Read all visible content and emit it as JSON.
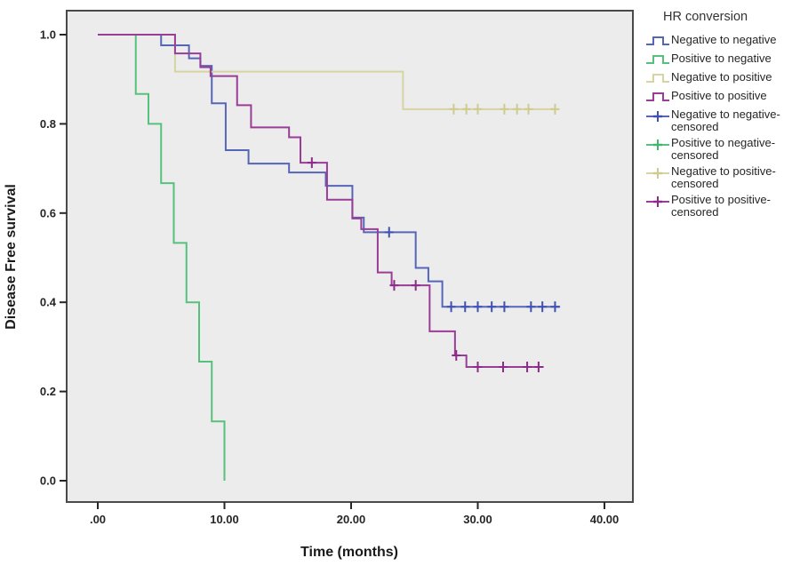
{
  "figure": {
    "y_axis": {
      "title": "Disease Free survival"
    },
    "x_axis": {
      "title": "Time (months)"
    },
    "legend": {
      "title": "HR conversion",
      "items": [
        {
          "label": "Negative to negative",
          "kind": "step",
          "color": "#5566b8"
        },
        {
          "label": "Positive to negative",
          "kind": "step",
          "color": "#56c17d"
        },
        {
          "label": "Negative to positive",
          "kind": "step",
          "color": "#d7d4a2"
        },
        {
          "label": "Positive to positive",
          "kind": "step",
          "color": "#993d96"
        },
        {
          "label": "Negative to negative-",
          "label2": "censored",
          "kind": "censor",
          "color": "#5566b8",
          "censor_color": "#3f51b0"
        },
        {
          "label": "Positive to negative-",
          "label2": "censored",
          "kind": "censor",
          "color": "#56c17d",
          "censor_color": "#43b56e"
        },
        {
          "label": "Negative to positive-",
          "label2": "censored",
          "kind": "censor",
          "color": "#d7d4a2",
          "censor_color": "#cfcb8e"
        },
        {
          "label": "Positive to positive-",
          "label2": "censored",
          "kind": "censor",
          "color": "#993d96",
          "censor_color": "#8b2d88"
        }
      ]
    }
  },
  "chart_data": {
    "type": "line",
    "subtype": "kaplan-meier-step-survival",
    "title": "",
    "xlabel": "Time (months)",
    "ylabel": "Disease Free survival",
    "legend_title": "HR conversion",
    "legend_position": "right",
    "grid": false,
    "plot_background": "#ececec",
    "xlim": [
      -2.5,
      42.3
    ],
    "ylim": [
      0,
      1.05
    ],
    "x_ticks": [
      0,
      10,
      20,
      30,
      40
    ],
    "x_tick_labels": [
      ".00",
      "10.00",
      "20.00",
      "30.00",
      "40.00"
    ],
    "y_ticks": [
      1.0,
      0.8,
      0.6,
      0.4,
      0.2,
      0.0
    ],
    "y_tick_labels": [
      "1.0",
      "0.8",
      "0.6",
      "0.4",
      "0.2",
      "0.0"
    ],
    "series": [
      {
        "name": "Negative to negative",
        "color": "#5566b8",
        "censor_color": "#3f51b0",
        "start": [
          0,
          1.0
        ],
        "steps": [
          [
            5.0,
            0.976
          ],
          [
            7.2,
            0.947
          ],
          [
            8.1,
            0.93
          ],
          [
            9.0,
            0.846
          ],
          [
            10.1,
            0.741
          ],
          [
            11.9,
            0.711
          ],
          [
            15.1,
            0.691
          ],
          [
            18.0,
            0.661
          ],
          [
            20.1,
            0.59
          ],
          [
            21.0,
            0.557
          ],
          [
            25.1,
            0.477
          ],
          [
            26.1,
            0.447
          ],
          [
            27.2,
            0.39
          ]
        ],
        "end": 36.5,
        "censored": [
          [
            23.0,
            0.557
          ],
          [
            27.9,
            0.39
          ],
          [
            29.0,
            0.39
          ],
          [
            30.0,
            0.39
          ],
          [
            31.1,
            0.39
          ],
          [
            32.1,
            0.39
          ],
          [
            34.2,
            0.39
          ],
          [
            35.1,
            0.39
          ],
          [
            36.1,
            0.39
          ]
        ]
      },
      {
        "name": "Positive to negative",
        "color": "#56c17d",
        "censor_color": "#43b56e",
        "start": [
          0,
          1.0
        ],
        "steps": [
          [
            3,
            0.867
          ],
          [
            4,
            0.8
          ],
          [
            5,
            0.667
          ],
          [
            6,
            0.533
          ],
          [
            7,
            0.4
          ],
          [
            8,
            0.267
          ],
          [
            9,
            0.133
          ],
          [
            10,
            0.0
          ]
        ],
        "end": 10,
        "censored": []
      },
      {
        "name": "Negative to positive",
        "color": "#d7d4a2",
        "censor_color": "#cfcb8e",
        "start": [
          0,
          1.0
        ],
        "steps": [
          [
            6.1,
            0.917
          ],
          [
            24.1,
            0.833
          ]
        ],
        "end": 36.3,
        "censored": [
          [
            28.1,
            0.833
          ],
          [
            29.1,
            0.833
          ],
          [
            30.0,
            0.833
          ],
          [
            32.1,
            0.833
          ],
          [
            33.1,
            0.833
          ],
          [
            34.0,
            0.833
          ],
          [
            36.1,
            0.833
          ]
        ]
      },
      {
        "name": "Positive to positive",
        "color": "#993d96",
        "censor_color": "#8b2d88",
        "start": [
          0,
          1.0
        ],
        "steps": [
          [
            6.1,
            0.958
          ],
          [
            8.1,
            0.927
          ],
          [
            8.9,
            0.907
          ],
          [
            11.0,
            0.842
          ],
          [
            12.1,
            0.792
          ],
          [
            15.1,
            0.77
          ],
          [
            16.0,
            0.713
          ],
          [
            18.1,
            0.63
          ],
          [
            20.1,
            0.588
          ],
          [
            20.8,
            0.564
          ],
          [
            22.1,
            0.467
          ],
          [
            23.2,
            0.438
          ],
          [
            26.2,
            0.335
          ],
          [
            28.2,
            0.281
          ],
          [
            29.1,
            0.255
          ]
        ],
        "end": 35.2,
        "censored": [
          [
            16.9,
            0.713
          ],
          [
            23.4,
            0.438
          ],
          [
            25.1,
            0.438
          ],
          [
            28.3,
            0.281
          ],
          [
            30.0,
            0.255
          ],
          [
            32.0,
            0.255
          ],
          [
            33.9,
            0.255
          ],
          [
            34.8,
            0.255
          ]
        ]
      }
    ]
  }
}
